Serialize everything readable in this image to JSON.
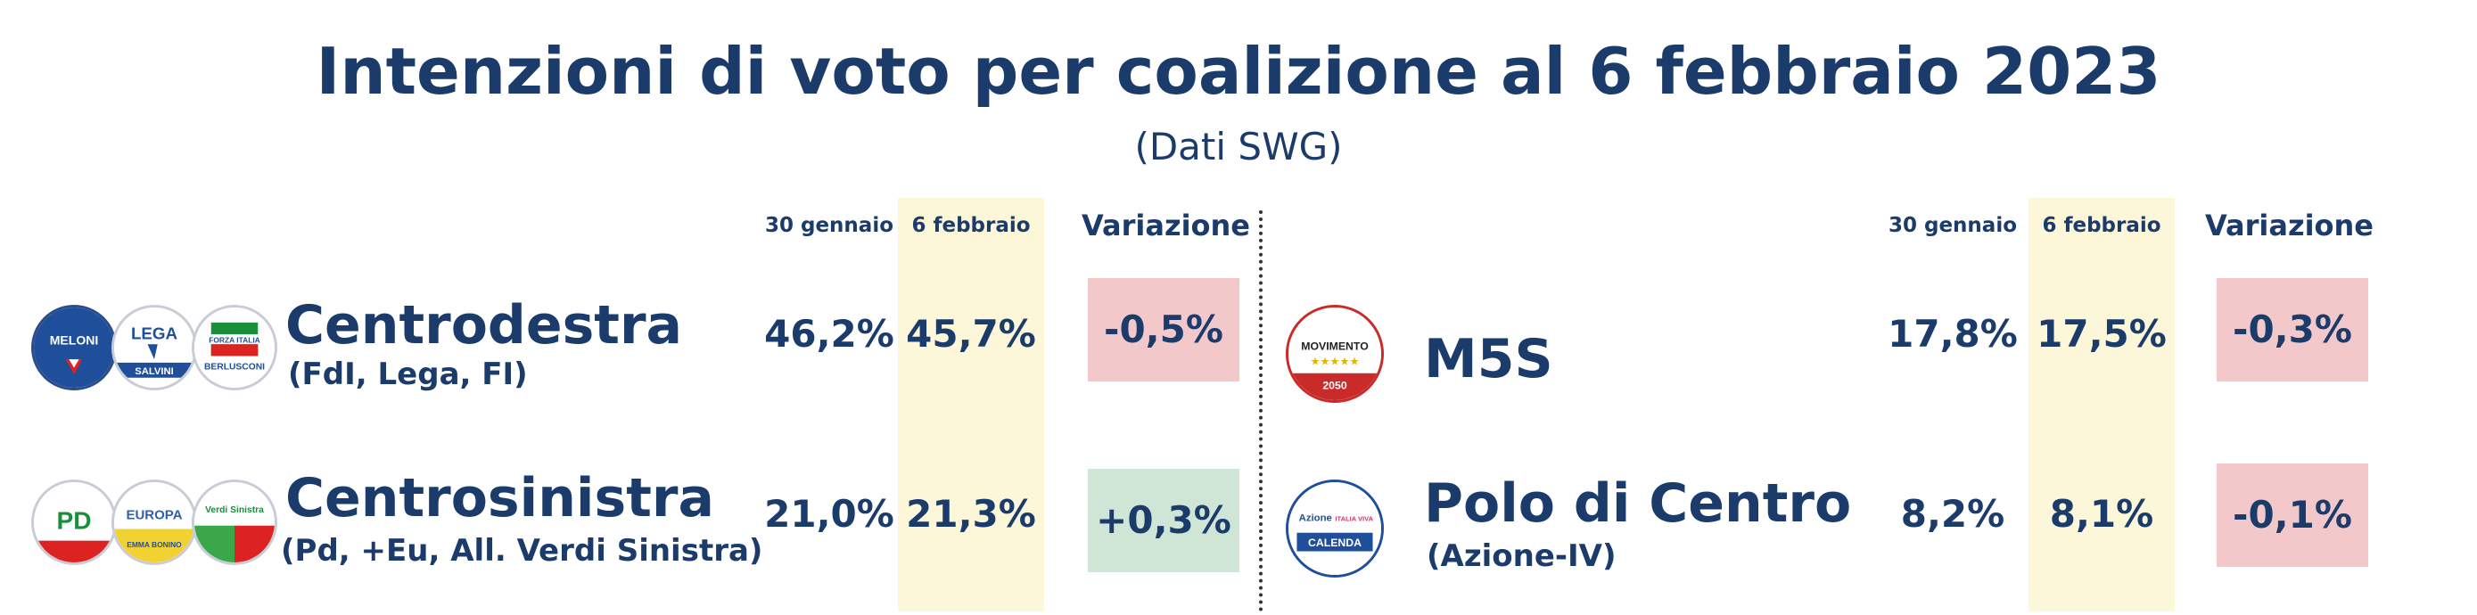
{
  "title": "Intenzioni di voto per coalizione al 6 febbraio 2023",
  "subtitle": "(Dati SWG)",
  "columns": {
    "prev": "30 gennaio",
    "curr": "6 febbraio",
    "change": "Variazione"
  },
  "colors": {
    "text": "#1b3b6b",
    "highlight": "#fdf7d9",
    "negative": "#f2c8ca",
    "positive": "#cfe5d5"
  },
  "logo_text": {
    "meloni": "MELONI",
    "lega": "LEGA",
    "salvini": "SALVINI",
    "fi": "FORZA ITALIA",
    "berlusconi": "BERLUSCONI",
    "pd": "PD",
    "europa": "EUROPA",
    "bonino": "EMMA BONINO",
    "avs": "Verdi Sinistra",
    "m5s": "MOVIMENTO",
    "m5s_year": "2050",
    "azione": "Azione",
    "iv": "ITALIA VIVA",
    "calenda": "CALENDA"
  },
  "chart_data": {
    "type": "table",
    "title": "Intenzioni di voto per coalizione al 6 febbraio 2023",
    "subtitle": "(Dati SWG)",
    "columns": [
      "30 gennaio",
      "6 febbraio",
      "Variazione"
    ],
    "rows": [
      {
        "name": "Centrodestra",
        "sub": "(FdI, Lega, FI)",
        "prev": "46,2%",
        "curr": "45,7%",
        "change": "-0,5%"
      },
      {
        "name": "Centrosinistra",
        "sub": "(Pd, +Eu, All. Verdi Sinistra)",
        "prev": "21,0%",
        "curr": "21,3%",
        "change": "+0,3%"
      },
      {
        "name": "M5S",
        "sub": "",
        "prev": "17,8%",
        "curr": "17,5%",
        "change": "-0,3%"
      },
      {
        "name": "Polo di Centro",
        "sub": "(Azione-IV)",
        "prev": "8,2%",
        "curr": "8,1%",
        "change": "-0,1%"
      }
    ]
  }
}
